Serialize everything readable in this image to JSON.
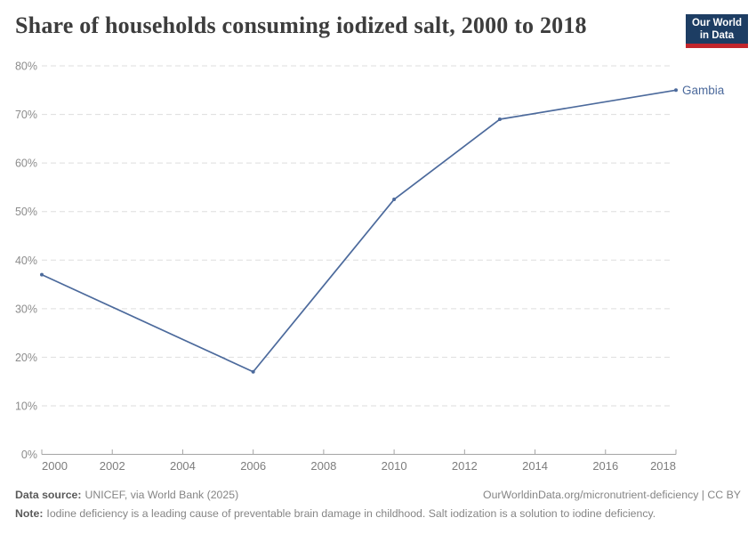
{
  "header": {
    "title": "Share of households consuming iodized salt, 2000 to 2018",
    "logo": {
      "line1": "Our World",
      "line2": "in Data",
      "bg_color": "#1d3d63",
      "accent_color": "#c2262c"
    }
  },
  "chart_data": {
    "type": "line",
    "title": "Share of households consuming iodized salt, 2000 to 2018",
    "x": [
      2000,
      2006,
      2010,
      2013,
      2018
    ],
    "series": [
      {
        "name": "Gambia",
        "values": [
          37,
          17,
          52.5,
          69,
          75
        ],
        "color": "#4C6A9C"
      }
    ],
    "xlim": [
      2000,
      2018
    ],
    "ylim": [
      0,
      80
    ],
    "x_ticks": [
      2000,
      2002,
      2004,
      2006,
      2008,
      2010,
      2012,
      2014,
      2016,
      2018
    ],
    "x_tick_labels": [
      "2000",
      "2002",
      "2004",
      "2006",
      "2008",
      "2010",
      "2012",
      "2014",
      "2016",
      "2018"
    ],
    "y_ticks": [
      0,
      10,
      20,
      30,
      40,
      50,
      60,
      70,
      80
    ],
    "y_tick_labels": [
      "0%",
      "10%",
      "20%",
      "30%",
      "40%",
      "50%",
      "60%",
      "70%",
      "80%"
    ],
    "grid": "horizontal-dashed",
    "legend": "line-end-label",
    "xlabel": "",
    "ylabel": ""
  },
  "footer": {
    "data_source_label": "Data source:",
    "data_source_text": "UNICEF, via World Bank (2025)",
    "attribution": "OurWorldinData.org/micronutrient-deficiency | CC BY",
    "note_label": "Note:",
    "note_text": "Iodine deficiency is a leading cause of preventable brain damage in childhood. Salt iodization is a solution to iodine deficiency."
  },
  "colors": {
    "line": "#4C6A9C",
    "grid": "#dedede",
    "axis": "#a5a5a5",
    "y_tick_label": "#8c8c8c",
    "x_tick_label": "#7d7d7d",
    "title": "#3d3d3d",
    "footer_text": "#858585"
  }
}
